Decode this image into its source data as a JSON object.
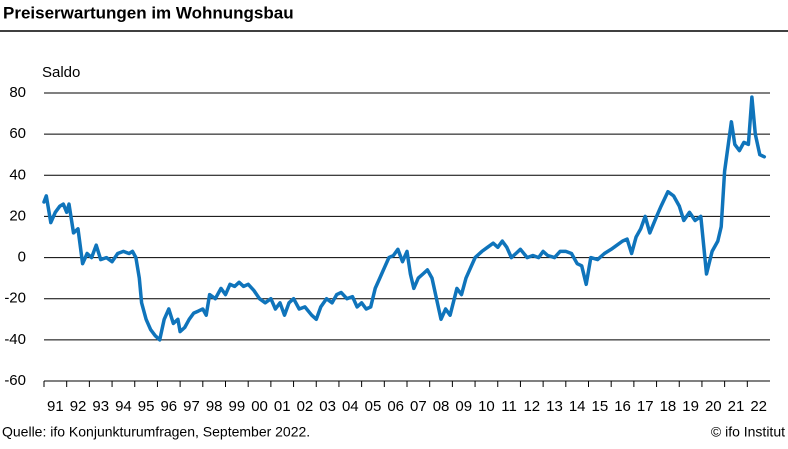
{
  "chart_data": {
    "type": "line",
    "title": "Preiserwartungen im Wohnungsbau",
    "ylabel": "Saldo",
    "source": "Quelle: ifo Konjunkturumfragen, September 2022.",
    "credit": "© ifo Institut",
    "color": "#0f74bb",
    "grid": true,
    "ylim": [
      -60,
      80
    ],
    "yticks": [
      -60,
      -40,
      -20,
      0,
      20,
      40,
      60,
      80
    ],
    "xlim": [
      1991,
      2023
    ],
    "xticks": [
      {
        "value": 1991,
        "label": "91"
      },
      {
        "value": 1992,
        "label": "92"
      },
      {
        "value": 1993,
        "label": "93"
      },
      {
        "value": 1994,
        "label": "94"
      },
      {
        "value": 1995,
        "label": "95"
      },
      {
        "value": 1996,
        "label": "96"
      },
      {
        "value": 1997,
        "label": "97"
      },
      {
        "value": 1998,
        "label": "98"
      },
      {
        "value": 1999,
        "label": "99"
      },
      {
        "value": 2000,
        "label": "00"
      },
      {
        "value": 2001,
        "label": "01"
      },
      {
        "value": 2002,
        "label": "02"
      },
      {
        "value": 2003,
        "label": "03"
      },
      {
        "value": 2004,
        "label": "04"
      },
      {
        "value": 2005,
        "label": "05"
      },
      {
        "value": 2006,
        "label": "06"
      },
      {
        "value": 2007,
        "label": "07"
      },
      {
        "value": 2008,
        "label": "08"
      },
      {
        "value": 2009,
        "label": "09"
      },
      {
        "value": 2010,
        "label": "10"
      },
      {
        "value": 2011,
        "label": "11"
      },
      {
        "value": 2012,
        "label": "12"
      },
      {
        "value": 2013,
        "label": "13"
      },
      {
        "value": 2014,
        "label": "14"
      },
      {
        "value": 2015,
        "label": "15"
      },
      {
        "value": 2016,
        "label": "16"
      },
      {
        "value": 2017,
        "label": "17"
      },
      {
        "value": 2018,
        "label": "18"
      },
      {
        "value": 2019,
        "label": "19"
      },
      {
        "value": 2020,
        "label": "20"
      },
      {
        "value": 2021,
        "label": "21"
      },
      {
        "value": 2022,
        "label": "22"
      }
    ],
    "x": [
      1991.0,
      1991.1,
      1991.3,
      1991.5,
      1991.7,
      1991.85,
      1992.0,
      1992.1,
      1992.3,
      1992.5,
      1992.7,
      1992.9,
      1993.1,
      1993.3,
      1993.5,
      1993.75,
      1994.0,
      1994.25,
      1994.5,
      1994.75,
      1994.9,
      1995.05,
      1995.2,
      1995.3,
      1995.5,
      1995.7,
      1995.9,
      1996.1,
      1996.3,
      1996.5,
      1996.7,
      1996.9,
      1997.0,
      1997.2,
      1997.4,
      1997.6,
      1997.8,
      1998.0,
      1998.15,
      1998.3,
      1998.55,
      1998.8,
      1999.0,
      1999.2,
      1999.4,
      1999.6,
      1999.8,
      2000.0,
      2000.25,
      2000.5,
      2000.75,
      2001.0,
      2001.2,
      2001.4,
      2001.6,
      2001.8,
      2002.0,
      2002.25,
      2002.5,
      2002.8,
      2003.0,
      2003.2,
      2003.45,
      2003.7,
      2003.9,
      2004.1,
      2004.35,
      2004.6,
      2004.8,
      2005.0,
      2005.2,
      2005.4,
      2005.6,
      2005.8,
      2006.0,
      2006.2,
      2006.4,
      2006.6,
      2006.8,
      2007.0,
      2007.15,
      2007.3,
      2007.5,
      2007.7,
      2007.9,
      2008.1,
      2008.3,
      2008.5,
      2008.7,
      2008.9,
      2009.2,
      2009.4,
      2009.6,
      2009.8,
      2010.0,
      2010.3,
      2010.55,
      2010.8,
      2011.0,
      2011.2,
      2011.4,
      2011.6,
      2011.8,
      2012.0,
      2012.3,
      2012.55,
      2012.8,
      2013.0,
      2013.2,
      2013.5,
      2013.75,
      2014.0,
      2014.25,
      2014.5,
      2014.7,
      2014.9,
      2015.1,
      2015.4,
      2015.7,
      2016.0,
      2016.25,
      2016.5,
      2016.7,
      2016.9,
      2017.1,
      2017.3,
      2017.5,
      2017.7,
      2018.0,
      2018.2,
      2018.5,
      2018.75,
      2019.0,
      2019.2,
      2019.45,
      2019.7,
      2019.95,
      2020.2,
      2020.45,
      2020.7,
      2020.85,
      2021.0,
      2021.3,
      2021.45,
      2021.65,
      2021.85,
      2022.05,
      2022.2,
      2022.35,
      2022.55,
      2022.75
    ],
    "values": [
      27,
      30,
      17,
      22,
      25,
      26,
      22,
      26,
      12,
      14,
      -3,
      2,
      0,
      6,
      -1,
      0,
      -2,
      2,
      3,
      2,
      3,
      0,
      -10,
      -22,
      -30,
      -35,
      -38,
      -40,
      -30,
      -25,
      -32,
      -30,
      -36,
      -34,
      -30,
      -27,
      -26,
      -25,
      -28,
      -18,
      -20,
      -15,
      -18,
      -13,
      -14,
      -12,
      -14,
      -13,
      -16,
      -20,
      -22,
      -20,
      -25,
      -22,
      -28,
      -22,
      -20,
      -25,
      -24,
      -28,
      -30,
      -24,
      -20,
      -22,
      -18,
      -17,
      -20,
      -19,
      -24,
      -22,
      -25,
      -24,
      -15,
      -10,
      -5,
      0,
      1,
      4,
      -2,
      3,
      -8,
      -15,
      -10,
      -8,
      -6,
      -10,
      -20,
      -30,
      -25,
      -28,
      -15,
      -18,
      -10,
      -5,
      0,
      3,
      5,
      7,
      5,
      8,
      5,
      0,
      2,
      4,
      0,
      1,
      0,
      3,
      1,
      0,
      3,
      3,
      2,
      -3,
      -4,
      -13,
      0,
      -1,
      2,
      4,
      6,
      8,
      9,
      2,
      10,
      14,
      20,
      12,
      20,
      25,
      32,
      30,
      25,
      18,
      22,
      18,
      20,
      -8,
      3,
      8,
      15,
      42,
      66,
      55,
      52,
      56,
      55,
      78,
      60,
      50,
      49
    ]
  }
}
